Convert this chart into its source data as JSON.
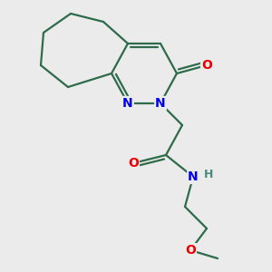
{
  "background_color": "#ebebeb",
  "bond_color": "#2d6b4a",
  "bond_width": 1.6,
  "atom_colors": {
    "N": "#0000ee",
    "O": "#ee0000",
    "H": "#4a8a7a",
    "C": "#2d6b4a"
  },
  "font_size_atom": 10,
  "fig_size": [
    3.0,
    3.0
  ],
  "dpi": 100
}
